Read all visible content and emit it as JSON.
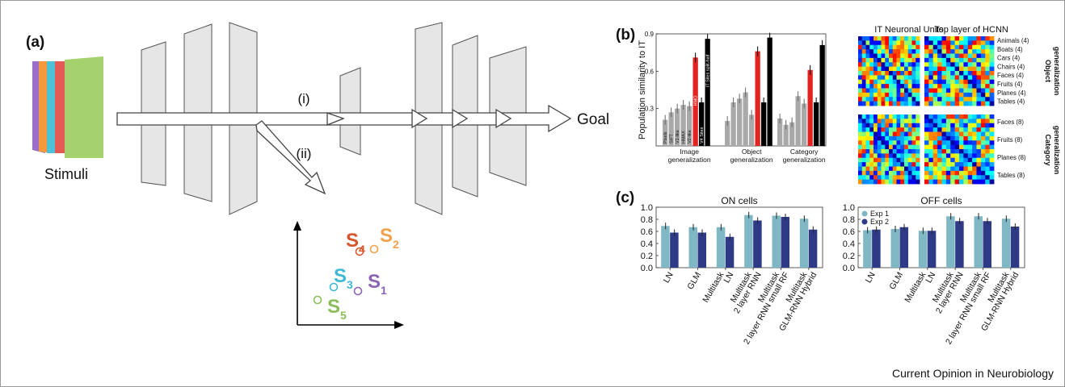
{
  "panel_a": {
    "label": "(a)",
    "stimuli_label": "Stimuli",
    "goal_label": "Goal",
    "path_i": "(i)",
    "path_ii": "(ii)",
    "points": [
      {
        "base": "S",
        "sub": "4",
        "color": "#d9562b"
      },
      {
        "base": "S",
        "sub": "2",
        "color": "#f0a04b"
      },
      {
        "base": "S",
        "sub": "3",
        "color": "#3fb8d3"
      },
      {
        "base": "S",
        "sub": "1",
        "color": "#8b64b3"
      },
      {
        "base": "S",
        "sub": "5",
        "color": "#8bbe5a"
      }
    ],
    "stimuli_colors": [
      "#9b6fc9",
      "#f39b3a",
      "#4cc1d8",
      "#e45a55",
      "#a6d26e"
    ]
  },
  "panel_b": {
    "label": "(b)",
    "heatmap_titles": [
      "IT Neuronal Units",
      "Top layer of HCNN"
    ],
    "object_labels": [
      "Animals (4)",
      "Boats (4)",
      "Cars (4)",
      "Chairs (4)",
      "Faces (4)",
      "Fruits (4)",
      "Planes (4)",
      "Tables (4)"
    ],
    "object_side_label": "Object generalization",
    "category_labels": [
      "Faces (8)",
      "Fruits (8)",
      "Planes (8)",
      "Tables (8)"
    ],
    "category_side_label": "Category generalization"
  },
  "panel_c": {
    "label": "(c)",
    "footer": "Current Opinion in Neurobiology"
  },
  "chart_data": [
    {
      "type": "bar",
      "ylabel": "Population similarity to IT",
      "ylim": [
        0,
        0.9
      ],
      "yticks": [
        "0.3",
        "0.6",
        "0.9"
      ],
      "groups": [
        "Image generalization",
        "Object generalization",
        "Category generalization"
      ],
      "bar_labels": [
        "Pixels",
        "SIFT",
        "V1-like",
        "HMAX",
        "V2-like",
        "HMO",
        "V4 Sites",
        "IT Sites split-half"
      ],
      "bar_colors": [
        "#a9a9a9",
        "#a9a9a9",
        "#a9a9a9",
        "#a9a9a9",
        "#a9a9a9",
        "#e3231f",
        "#000000",
        "#000000"
      ],
      "values": [
        [
          0.21,
          0.27,
          0.3,
          0.33,
          0.32,
          0.71,
          0.35,
          0.86
        ],
        [
          0.2,
          0.35,
          0.38,
          0.43,
          0.25,
          0.76,
          0.35,
          0.87
        ],
        [
          0.22,
          0.17,
          0.19,
          0.4,
          0.34,
          0.61,
          0.35,
          0.81
        ]
      ]
    },
    {
      "type": "bar",
      "title": "ON cells",
      "ylim": [
        0,
        1.0
      ],
      "yticks": [
        "0.0",
        "0.2",
        "0.4",
        "0.6",
        "0.8",
        "1.0"
      ],
      "categories": [
        "LN",
        "GLM",
        "Multitask LN",
        "Multitask 2 layer RNN",
        "Multitask 2 layer RNN small RF",
        "Multitask GLM-RNN Hybrid"
      ],
      "series": [
        {
          "name": "Exp 1",
          "color": "#7fb8c4",
          "values": [
            0.69,
            0.67,
            0.67,
            0.87,
            0.86,
            0.81
          ]
        },
        {
          "name": "Exp 2",
          "color": "#2e3a86",
          "values": [
            0.58,
            0.58,
            0.51,
            0.78,
            0.84,
            0.63
          ]
        }
      ]
    },
    {
      "type": "bar",
      "title": "OFF cells",
      "ylim": [
        0,
        1.0
      ],
      "yticks": [
        "0.0",
        "0.2",
        "0.4",
        "0.6",
        "0.8",
        "1.0"
      ],
      "legend": [
        "Exp 1",
        "Exp 2"
      ],
      "categories": [
        "LN",
        "GLM",
        "Multitask LN",
        "Multitask 2 layer RNN",
        "Multitask 2 layer RNN small RF",
        "Multitask GLM-RNN Hybrid"
      ],
      "series": [
        {
          "name": "Exp 1",
          "color": "#7fb8c4",
          "values": [
            0.62,
            0.64,
            0.61,
            0.85,
            0.85,
            0.81
          ]
        },
        {
          "name": "Exp 2",
          "color": "#2e3a86",
          "values": [
            0.63,
            0.67,
            0.61,
            0.77,
            0.77,
            0.68
          ]
        }
      ]
    }
  ]
}
